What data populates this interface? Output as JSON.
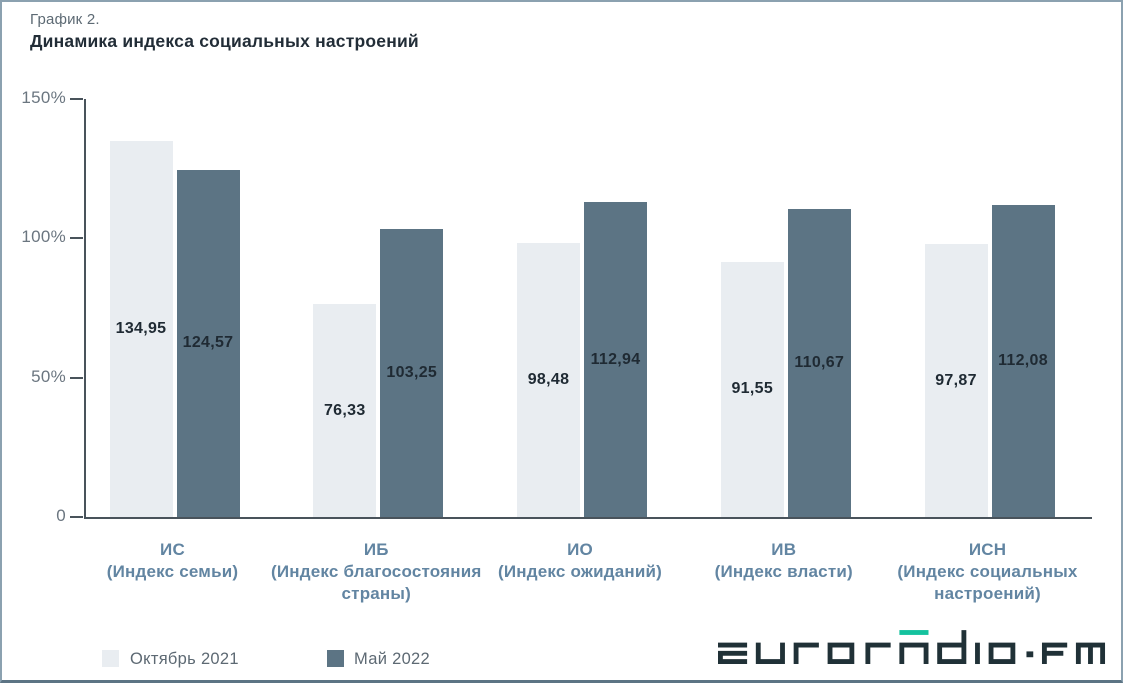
{
  "header": {
    "pretitle": "График 2.",
    "title": "Динамика индекса социальных настроений"
  },
  "chart_data": {
    "type": "bar",
    "title": "Динамика индекса социальных настроений",
    "ylim": [
      0,
      150
    ],
    "grid": false,
    "legend_position": "bottom-left",
    "y_ticks": [
      {
        "value": 150,
        "label": "150%"
      },
      {
        "value": 100,
        "label": "100%"
      },
      {
        "value": 50,
        "label": "50%"
      },
      {
        "value": 0,
        "label": "0"
      }
    ],
    "categories": [
      {
        "code": "ИС",
        "label": "(Индекс семьи)"
      },
      {
        "code": "ИБ",
        "label": "(Индекс благосостояния страны)"
      },
      {
        "code": "ИО",
        "label": "(Индекс ожиданий)"
      },
      {
        "code": "ИВ",
        "label": "(Индекс власти)"
      },
      {
        "code": "ИСН",
        "label": "(Индекс социальных настроений)"
      }
    ],
    "series": [
      {
        "name": "Октябрь 2021",
        "color": "#e9edf1",
        "values": [
          134.95,
          76.33,
          98.48,
          91.55,
          97.87
        ],
        "labels": [
          "134,95",
          "76,33",
          "98,48",
          "91,55",
          "97,87"
        ]
      },
      {
        "name": "Май 2022",
        "color": "#5c7484",
        "values": [
          124.57,
          103.25,
          112.94,
          110.67,
          112.08
        ],
        "labels": [
          "124,57",
          "103,25",
          "112,94",
          "110,67",
          "112,08"
        ]
      }
    ]
  },
  "legend": {
    "items": [
      {
        "label": "Октябрь 2021",
        "color": "#e9edf1"
      },
      {
        "label": "Май 2022",
        "color": "#5c7484"
      }
    ]
  },
  "logo": {
    "text": "euroradio.fm",
    "color": "#203137",
    "accent_color": "#14c29e"
  },
  "colors": {
    "bar_october": "#e9edf1",
    "bar_may": "#5c7484",
    "category_label": "#6285a2",
    "value_label": "#1f2a33",
    "axis": "#49535b",
    "tick_label": "#6b7680",
    "title": "#222d37",
    "pretitle": "#5d6a74",
    "legend_text": "#5d6973",
    "border": "#8ba1b0",
    "border_bottom": "#5c7484",
    "logo_dark": "#203137",
    "logo_accent": "#14c29e"
  }
}
